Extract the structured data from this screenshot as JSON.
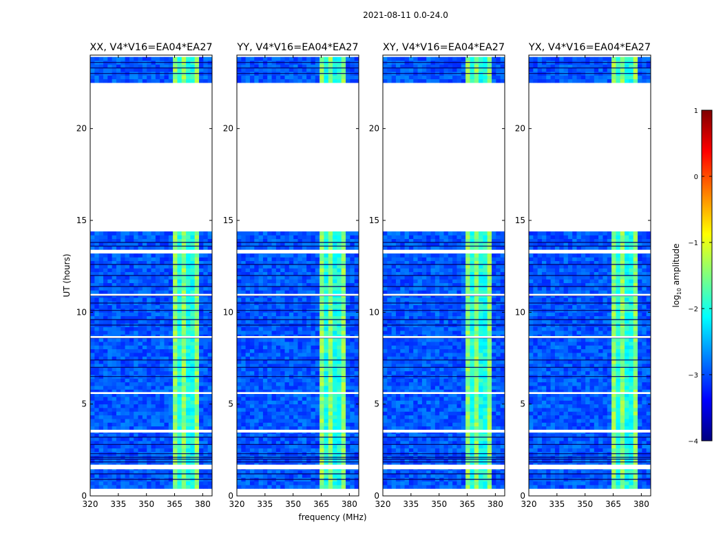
{
  "figure": {
    "suptitle": "2021-08-11 0.0-24.0",
    "ylabel": "UT (hours)",
    "xlabel": "frequency (MHz)"
  },
  "chart_data": {
    "type": "heatmap",
    "xlim": [
      320,
      385
    ],
    "ylim": [
      0,
      24
    ],
    "xticks": [
      "320",
      "335",
      "350",
      "365",
      "380"
    ],
    "yticks": [
      "0",
      "5",
      "10",
      "15",
      "20"
    ],
    "panels": [
      {
        "title": "XX, V4*V16=EA04*EA27"
      },
      {
        "title": "YY, V4*V16=EA04*EA27"
      },
      {
        "title": "XY, V4*V16=EA04*EA27"
      },
      {
        "title": "YX, V4*V16=EA04*EA27"
      }
    ],
    "data_blocks_hours": [
      [
        0.4,
        14.4
      ],
      [
        22.5,
        23.9
      ]
    ],
    "white_gaps_hours": [
      [
        1.45,
        1.7
      ],
      [
        3.45,
        3.6
      ],
      [
        5.55,
        5.65
      ],
      [
        8.6,
        8.7
      ],
      [
        10.9,
        11.0
      ],
      [
        13.2,
        13.4
      ]
    ],
    "dark_lines_hours": [
      0.9,
      1.2,
      1.85,
      2.0,
      2.1,
      2.3,
      2.8,
      3.2,
      5.6,
      6.5,
      7.0,
      7.4,
      8.6,
      9.3,
      9.6,
      10.1,
      10.5,
      10.9,
      11.4,
      12.0,
      12.6,
      13.6,
      13.8,
      23.0,
      23.3,
      23.6
    ],
    "bright_band_mhz": [
      363,
      379
    ],
    "colorbar": {
      "label": "log10 amplitude",
      "label_main": "log",
      "label_sub": "10",
      "label_tail": " amplitude",
      "range": [
        -4,
        1
      ],
      "ticks": [
        "1",
        "0",
        "−1",
        "−2",
        "−3",
        "−4"
      ],
      "colormap": [
        "#00007f",
        "#0000ff",
        "#007fff",
        "#00ffff",
        "#7fff7f",
        "#ffff00",
        "#ff7f00",
        "#ff0000",
        "#7f0000"
      ]
    }
  }
}
